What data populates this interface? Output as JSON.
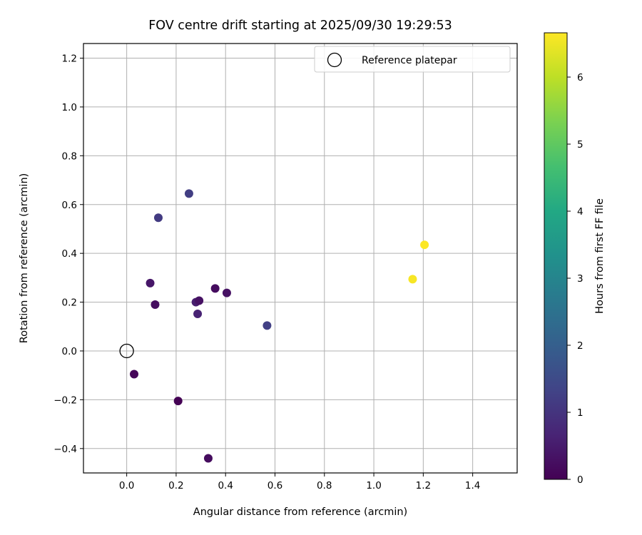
{
  "chart_data": {
    "type": "scatter",
    "title": "FOV centre drift starting at 2025/09/30 19:29:53",
    "xlabel": "Angular distance from reference (arcmin)",
    "ylabel": "Rotation from reference (arcmin)",
    "xlim": [
      -0.175,
      1.58
    ],
    "ylim": [
      -0.5,
      1.26
    ],
    "xticks": [
      0.0,
      0.2,
      0.4,
      0.6,
      0.8,
      1.0,
      1.2,
      1.4
    ],
    "xtick_labels": [
      "0.0",
      "0.2",
      "0.4",
      "0.6",
      "0.8",
      "1.0",
      "1.2",
      "1.4"
    ],
    "yticks": [
      -0.4,
      -0.2,
      0.0,
      0.2,
      0.4,
      0.6,
      0.8,
      1.0,
      1.2
    ],
    "ytick_labels": [
      "−0.4",
      "−0.2",
      "0.0",
      "0.2",
      "0.4",
      "0.6",
      "0.8",
      "1.0",
      "1.2"
    ],
    "grid": true,
    "legend": {
      "placement": "upper right",
      "entries": [
        "Reference platepar"
      ]
    },
    "reference_point": {
      "x": 0.0,
      "y": 0.0
    },
    "points": [
      {
        "x": 0.03,
        "y": -0.095,
        "hours": 0.1
      },
      {
        "x": 0.095,
        "y": 0.278,
        "hours": 0.4
      },
      {
        "x": 0.115,
        "y": 0.19,
        "hours": 0.25
      },
      {
        "x": 0.128,
        "y": 0.546,
        "hours": 1.15
      },
      {
        "x": 0.208,
        "y": -0.205,
        "hours": 0.0
      },
      {
        "x": 0.252,
        "y": 0.645,
        "hours": 1.2
      },
      {
        "x": 0.28,
        "y": 0.2,
        "hours": 0.55
      },
      {
        "x": 0.287,
        "y": 0.152,
        "hours": 0.65
      },
      {
        "x": 0.293,
        "y": 0.206,
        "hours": 0.3
      },
      {
        "x": 0.33,
        "y": -0.44,
        "hours": 0.2
      },
      {
        "x": 0.358,
        "y": 0.256,
        "hours": 0.2
      },
      {
        "x": 0.405,
        "y": 0.238,
        "hours": 0.3
      },
      {
        "x": 0.568,
        "y": 0.104,
        "hours": 1.25
      },
      {
        "x": 1.157,
        "y": 0.294,
        "hours": 6.6
      },
      {
        "x": 1.205,
        "y": 0.435,
        "hours": 6.65
      }
    ],
    "colorbar": {
      "label": "Hours from first FF file",
      "colormap": "viridis",
      "range": [
        0,
        6.66
      ],
      "ticks": [
        0,
        1,
        2,
        3,
        4,
        5,
        6
      ],
      "tick_labels": [
        "0",
        "1",
        "2",
        "3",
        "4",
        "5",
        "6"
      ]
    },
    "colors": {
      "grid": "#b0b0b0",
      "axes": "#000000"
    }
  }
}
